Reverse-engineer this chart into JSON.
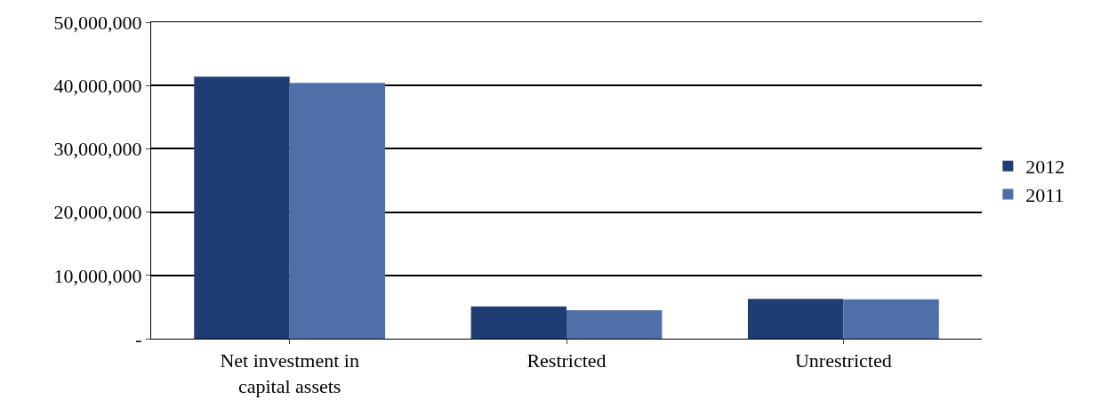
{
  "chart_data": {
    "type": "bar",
    "categories": [
      "Net investment in capital assets",
      "Restricted",
      "Unrestricted"
    ],
    "series": [
      {
        "name": "2012",
        "color": "#1f3c73",
        "values": [
          41400000,
          5100000,
          6300000
        ]
      },
      {
        "name": "2011",
        "color": "#4f6fa8",
        "values": [
          40400000,
          4500000,
          6200000
        ]
      }
    ],
    "ylim": [
      0,
      50000000
    ],
    "yticks": [
      {
        "value": 0,
        "label": "-"
      },
      {
        "value": 10000000,
        "label": "10,000,000"
      },
      {
        "value": 20000000,
        "label": "20,000,000"
      },
      {
        "value": 30000000,
        "label": "30,000,000"
      },
      {
        "value": 40000000,
        "label": "40,000,000"
      },
      {
        "value": 50000000,
        "label": "50,000,000"
      }
    ],
    "grid": "y",
    "legend": "right"
  }
}
